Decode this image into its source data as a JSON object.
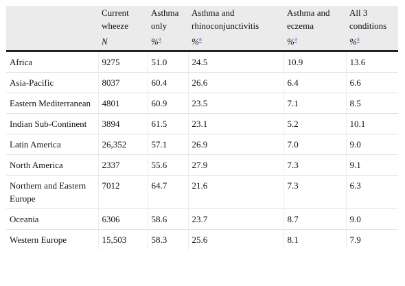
{
  "table": {
    "headers": [
      {
        "label": "",
        "unit": "",
        "sup": ""
      },
      {
        "label": "Current wheeze",
        "unit": "N",
        "sup": ""
      },
      {
        "label": "Asthma only",
        "unit": "%",
        "sup": "a"
      },
      {
        "label": "Asthma and rhinoconjunctivitis",
        "unit": "%",
        "sup": "a"
      },
      {
        "label": "Asthma and eczema",
        "unit": "%",
        "sup": "a"
      },
      {
        "label": "All 3 conditions",
        "unit": "%",
        "sup": "a"
      }
    ],
    "rows": [
      [
        "Africa",
        "9275",
        "51.0",
        "24.5",
        "10.9",
        "13.6"
      ],
      [
        "Asia-Pacific",
        "8037",
        "60.4",
        "26.6",
        "6.4",
        "6.6"
      ],
      [
        "Eastern Mediterranean",
        "4801",
        "60.9",
        "23.5",
        "7.1",
        "8.5"
      ],
      [
        "Indian Sub-Continent",
        "3894",
        "61.5",
        "23.1",
        "5.2",
        "10.1"
      ],
      [
        "Latin America",
        "26,352",
        "57.1",
        "26.9",
        "7.0",
        "9.0"
      ],
      [
        "North America",
        "2337",
        "55.6",
        "27.9",
        "7.3",
        "9.1"
      ],
      [
        "Northern and Eastern Europe",
        "7012",
        "64.7",
        "21.6",
        "7.3",
        "6.3"
      ],
      [
        "Oceania",
        "6306",
        "58.6",
        "23.7",
        "8.7",
        "9.0"
      ],
      [
        "Western Europe",
        "15,503",
        "58.3",
        "25.6",
        "8.1",
        "7.9"
      ]
    ]
  },
  "colors": {
    "header_bg": "#ebebeb",
    "link": "#2a6cc8",
    "rule": "#222222"
  }
}
